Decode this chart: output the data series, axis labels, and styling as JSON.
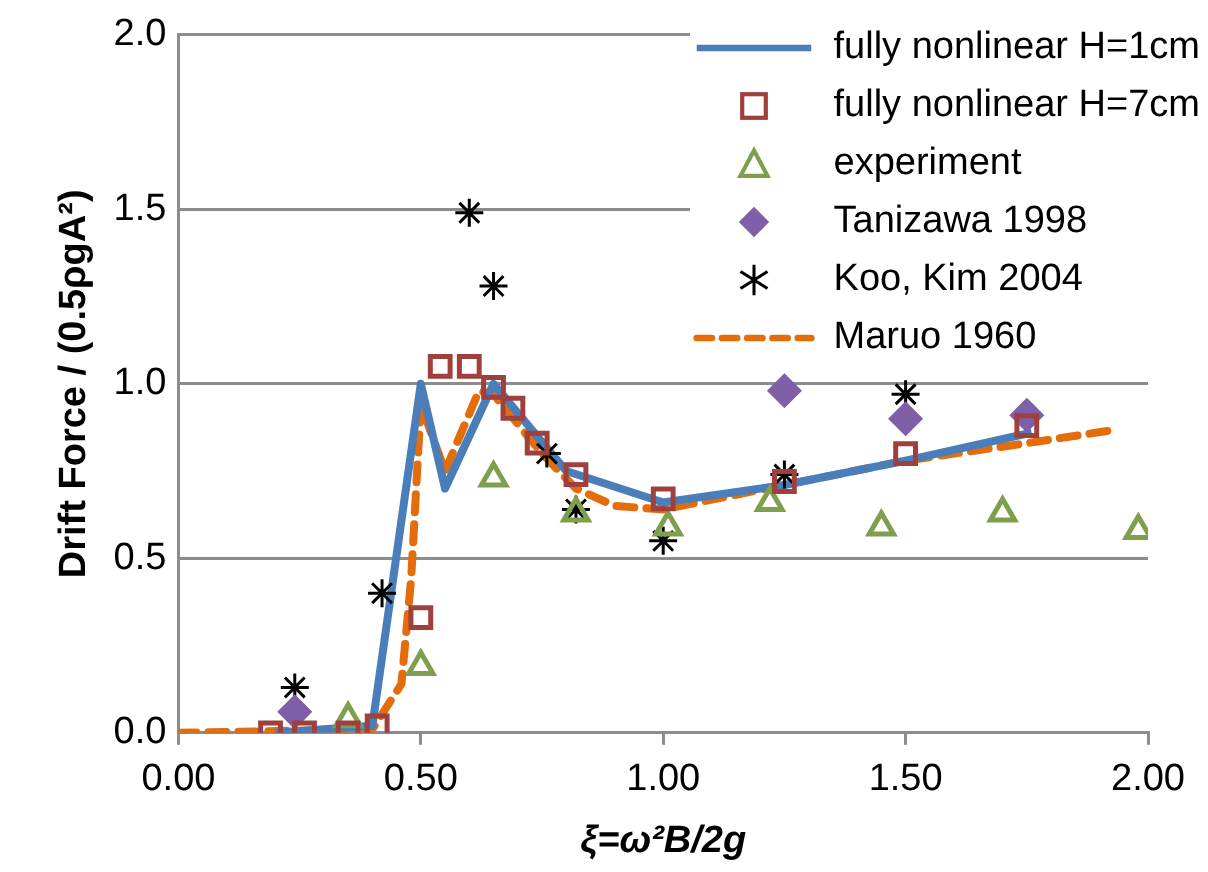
{
  "chart_data": {
    "type": "scatter",
    "xlabel": "ξ=ω²B/2g",
    "ylabel": "Drift Force / (0.5ρgA²)",
    "xlim": [
      0,
      2
    ],
    "ylim": [
      0,
      2
    ],
    "xticks": [
      {
        "value": 0,
        "label": "0.00"
      },
      {
        "value": 0.5,
        "label": "0.50"
      },
      {
        "value": 1,
        "label": "1.00"
      },
      {
        "value": 1.5,
        "label": "1.50"
      },
      {
        "value": 2,
        "label": "2.00"
      }
    ],
    "yticks": [
      {
        "value": 0,
        "label": "0.0"
      },
      {
        "value": 0.5,
        "label": "0.5"
      },
      {
        "value": 1,
        "label": "1.0"
      },
      {
        "value": 1.5,
        "label": "1.5"
      },
      {
        "value": 2,
        "label": "2.0"
      }
    ],
    "grid": "y",
    "legend": "top right",
    "series": [
      {
        "name": "fully nonlinear H=1cm",
        "type": "line",
        "color": "#4a7ebb",
        "marker": "none",
        "line_style": "solid",
        "x": [
          0.2,
          0.4,
          0.5,
          0.55,
          0.65,
          0.8,
          1.0,
          1.25,
          1.5,
          1.76
        ],
        "values": [
          0,
          0.02,
          1.0,
          0.7,
          1.0,
          0.75,
          0.66,
          0.71,
          0.78,
          0.86
        ]
      },
      {
        "name": "fully nonlinear H=7cm",
        "type": "scatter",
        "color": "#a0403c",
        "marker": "square",
        "x": [
          0.19,
          0.26,
          0.35,
          0.41,
          0.5,
          0.54,
          0.6,
          0.65,
          0.69,
          0.74,
          0.82,
          1.0,
          1.25,
          1.5,
          1.75
        ],
        "values": [
          0,
          0,
          0,
          0.02,
          0.33,
          1.05,
          1.05,
          0.99,
          0.93,
          0.83,
          0.74,
          0.67,
          0.72,
          0.8,
          0.88
        ]
      },
      {
        "name": "experiment",
        "type": "scatter",
        "color": "#7f9f4f",
        "marker": "triangle",
        "x": [
          0.35,
          0.5,
          0.65,
          0.82,
          1.01,
          1.22,
          1.45,
          1.7,
          1.98
        ],
        "values": [
          0.04,
          0.19,
          0.73,
          0.63,
          0.59,
          0.66,
          0.59,
          0.63,
          0.58
        ]
      },
      {
        "name": "Tanizawa 1998",
        "type": "scatter",
        "color": "#7f60a8",
        "marker": "diamond",
        "x": [
          0.24,
          1.25,
          1.5,
          1.75
        ],
        "values": [
          0.06,
          0.98,
          0.9,
          0.91
        ]
      },
      {
        "name": "Koo, Kim 2004",
        "type": "scatter",
        "color": "#000000",
        "marker": "cross",
        "x": [
          0.24,
          0.42,
          0.6,
          0.65,
          0.76,
          0.82,
          1.0,
          1.25,
          1.5
        ],
        "values": [
          0.13,
          0.4,
          1.49,
          1.28,
          0.8,
          0.64,
          0.55,
          0.74,
          0.97
        ]
      },
      {
        "name": "Maruo 1960",
        "type": "line",
        "color": "#e46c0a",
        "marker": "none",
        "line_style": "dashed",
        "x": [
          0,
          0.4,
          0.46,
          0.48,
          0.5,
          0.55,
          0.62,
          0.65,
          0.75,
          0.82,
          0.9,
          1.0,
          1.25,
          1.5,
          1.75,
          1.94
        ],
        "values": [
          0,
          0.01,
          0.14,
          0.44,
          0.94,
          0.75,
          0.98,
          0.97,
          0.8,
          0.7,
          0.65,
          0.64,
          0.71,
          0.78,
          0.83,
          0.87
        ]
      }
    ]
  }
}
